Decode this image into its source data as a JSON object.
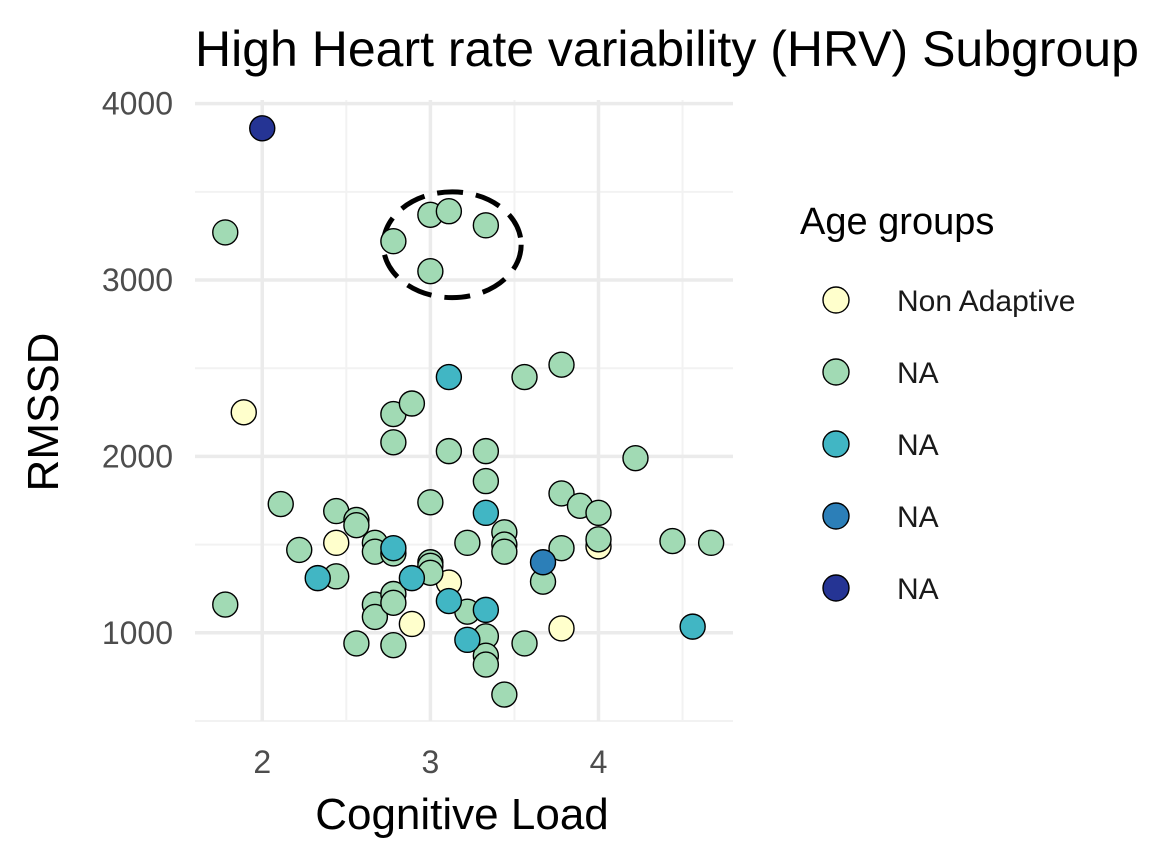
{
  "chart_data": {
    "type": "scatter",
    "title": "High Heart rate variability (HRV) Subgroup",
    "xlabel": "Cognitive Load",
    "ylabel": "RMSSD",
    "xlim": [
      1.6,
      4.8
    ],
    "ylim": [
      500,
      4100
    ],
    "x_ticks": [
      2,
      3,
      4
    ],
    "x_tick_labels": [
      "2",
      "3",
      "4"
    ],
    "y_ticks": [
      1000,
      2000,
      3000,
      4000
    ],
    "y_tick_labels": [
      "1000",
      "2000",
      "3000",
      "4000"
    ],
    "grid": true,
    "legend": {
      "title": "Age groups",
      "position": "right",
      "entries": [
        {
          "label": "Non Adaptive",
          "color": "#ffffcc"
        },
        {
          "label": "NA",
          "color": "#a1dab4"
        },
        {
          "label": "NA",
          "color": "#41b6c4"
        },
        {
          "label": "NA",
          "color": "#2c7fb8"
        },
        {
          "label": "NA",
          "color": "#253494"
        }
      ]
    },
    "annotation": {
      "type": "dashed-ellipse",
      "center": [
        3.13,
        3200
      ],
      "radius_x": 0.41,
      "radius_y": 300
    },
    "series": [
      {
        "color": "#ffffcc",
        "points": [
          [
            1.89,
            2250
          ],
          [
            2.44,
            1510
          ],
          [
            2.89,
            1050
          ],
          [
            3.11,
            1285
          ],
          [
            3.78,
            1025
          ],
          [
            4.0,
            1490
          ]
        ]
      },
      {
        "color": "#a1dab4",
        "points": [
          [
            1.78,
            3270
          ],
          [
            1.78,
            1160
          ],
          [
            2.11,
            1730
          ],
          [
            2.22,
            1470
          ],
          [
            2.44,
            1690
          ],
          [
            2.44,
            1320
          ],
          [
            2.56,
            1640
          ],
          [
            2.56,
            1610
          ],
          [
            2.56,
            940
          ],
          [
            2.67,
            1510
          ],
          [
            2.67,
            1460
          ],
          [
            2.67,
            1160
          ],
          [
            2.67,
            1090
          ],
          [
            2.78,
            3220
          ],
          [
            2.78,
            2240
          ],
          [
            2.78,
            2080
          ],
          [
            2.78,
            1450
          ],
          [
            2.78,
            1220
          ],
          [
            2.78,
            1170
          ],
          [
            2.78,
            930
          ],
          [
            2.89,
            2300
          ],
          [
            3.0,
            3370
          ],
          [
            3.0,
            3050
          ],
          [
            3.0,
            1740
          ],
          [
            3.0,
            1400
          ],
          [
            3.0,
            1380
          ],
          [
            3.0,
            1340
          ],
          [
            3.11,
            3390
          ],
          [
            3.11,
            2030
          ],
          [
            3.22,
            1510
          ],
          [
            3.22,
            1120
          ],
          [
            3.33,
            3310
          ],
          [
            3.33,
            2030
          ],
          [
            3.33,
            1860
          ],
          [
            3.33,
            980
          ],
          [
            3.33,
            870
          ],
          [
            3.33,
            820
          ],
          [
            3.44,
            1570
          ],
          [
            3.44,
            1500
          ],
          [
            3.44,
            1460
          ],
          [
            3.44,
            650
          ],
          [
            3.56,
            2450
          ],
          [
            3.56,
            940
          ],
          [
            3.67,
            1290
          ],
          [
            3.78,
            2520
          ],
          [
            3.78,
            1790
          ],
          [
            3.78,
            1480
          ],
          [
            3.89,
            1720
          ],
          [
            4.0,
            1680
          ],
          [
            4.0,
            1530
          ],
          [
            4.22,
            1990
          ],
          [
            4.44,
            1520
          ],
          [
            4.67,
            1510
          ]
        ]
      },
      {
        "color": "#41b6c4",
        "points": [
          [
            2.33,
            1310
          ],
          [
            2.78,
            1480
          ],
          [
            2.89,
            1310
          ],
          [
            3.11,
            2450
          ],
          [
            3.11,
            1180
          ],
          [
            3.22,
            960
          ],
          [
            3.33,
            1680
          ],
          [
            3.33,
            1130
          ],
          [
            4.56,
            1035
          ]
        ]
      },
      {
        "color": "#2c7fb8",
        "points": [
          [
            3.67,
            1400
          ]
        ]
      },
      {
        "color": "#253494",
        "points": [
          [
            2.0,
            3860
          ]
        ]
      }
    ]
  }
}
